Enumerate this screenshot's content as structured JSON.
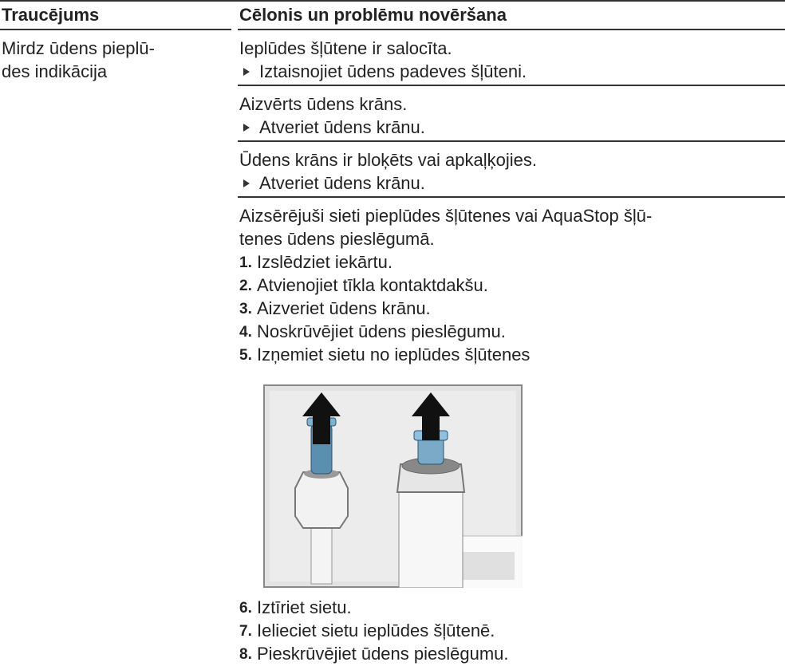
{
  "table": {
    "header": [
      "Traucējums",
      "Cēlonis un problēmu novēršana"
    ],
    "rows": [
      {
        "fault": [
          "Mirdz ūdens pieplū-",
          "des indikācija"
        ],
        "causes": [
          {
            "cause": [
              "Ieplūdes šļūtene ir salocīta."
            ],
            "steps": [
              "Iztaisnojiet ūdens padeves šļūteni."
            ]
          },
          {
            "cause": [
              "Aizvērts ūdens krāns."
            ],
            "steps": [
              "Atveriet ūdens krānu."
            ]
          },
          {
            "cause": [
              "Ūdens krāns ir bloķēts vai apkaļķojies."
            ],
            "steps": [
              "Atveriet ūdens krānu."
            ]
          },
          {
            "cause": [
              "Aizsērējuši sieti pieplūdes šļūtenes vai AquaStop šļū-",
              "tenes ūdens pieslēgumā."
            ],
            "steps_before": [
              {
                "n": "1.",
                "text": "Izslēdziet iekārtu."
              },
              {
                "n": "2.",
                "text": "Atvienojiet tīkla kontaktdakšu."
              },
              {
                "n": "3.",
                "text": "Aizveriet ūdens krānu."
              },
              {
                "n": "4.",
                "text": "Noskrūvējiet ūdens pieslēgumu."
              },
              {
                "n": "5.",
                "text": "Izņemiet sietu no ieplūdes šļūtenes"
              }
            ],
            "steps_after": [
              {
                "n": "6.",
                "text": "Iztīriet sietu."
              },
              {
                "n": "7.",
                "text": "Ielieciet sietu ieplūdes šļūtenē."
              },
              {
                "n": "8.",
                "text": "Pieskrūvējiet ūdens pieslēgumu."
              }
            ]
          }
        ]
      }
    ]
  }
}
